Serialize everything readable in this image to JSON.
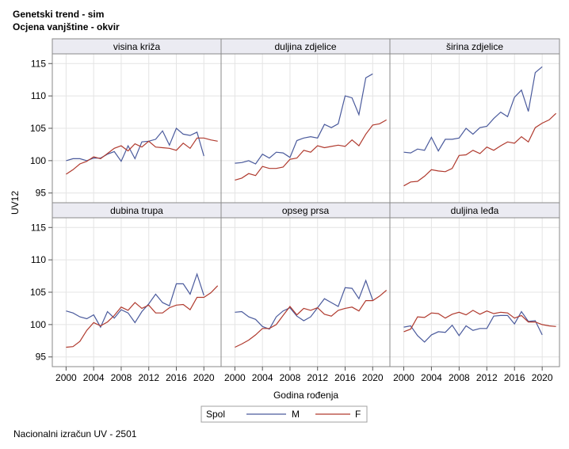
{
  "header": {
    "title": "Genetski trend - sim",
    "subtitle": "Ocjena vanjštine - okvir"
  },
  "footnote": "Nacionalni izračun UV - 2501",
  "chart_data": {
    "type": "line",
    "ylabel": "UV12",
    "xlabel": "Godina rođenja",
    "xlim": [
      1998,
      2022.5
    ],
    "ylim": [
      93.5,
      116.5
    ],
    "x_ticks": [
      2000,
      2004,
      2008,
      2012,
      2016,
      2020
    ],
    "y_ticks": [
      95,
      100,
      105,
      110,
      115
    ],
    "grid": true,
    "legend": {
      "position": "bottom",
      "title": "Spol",
      "entries": [
        {
          "key": "M",
          "label": "M",
          "color": "#4a5a9c"
        },
        {
          "key": "F",
          "label": "F",
          "color": "#b03a2e"
        }
      ]
    },
    "panels": [
      {
        "title": "visina križa",
        "series": [
          {
            "key": "M",
            "x": [
              2000,
              2001,
              2002,
              2003,
              2004,
              2005,
              2006,
              2007,
              2008,
              2009,
              2010,
              2011,
              2012,
              2013,
              2014,
              2015,
              2016,
              2017,
              2018,
              2019,
              2020
            ],
            "y": [
              100.0,
              100.3,
              100.3,
              100.0,
              100.4,
              100.4,
              101.0,
              101.4,
              99.9,
              102.3,
              100.3,
              102.9,
              103.0,
              103.3,
              104.6,
              102.4,
              105.0,
              104.1,
              103.9,
              104.4,
              100.7
            ]
          },
          {
            "key": "F",
            "x": [
              2000,
              2001,
              2002,
              2003,
              2004,
              2005,
              2006,
              2007,
              2008,
              2009,
              2010,
              2011,
              2012,
              2013,
              2014,
              2015,
              2016,
              2017,
              2018,
              2019,
              2020,
              2021,
              2022
            ],
            "y": [
              97.9,
              98.6,
              99.5,
              99.9,
              100.6,
              100.3,
              101.1,
              101.9,
              102.3,
              101.5,
              102.6,
              102.1,
              103.0,
              102.1,
              102.0,
              101.9,
              101.6,
              102.7,
              101.9,
              103.5,
              103.5,
              103.2,
              103.0
            ]
          }
        ]
      },
      {
        "title": "duljina zdjelice",
        "series": [
          {
            "key": "M",
            "x": [
              2000,
              2001,
              2002,
              2003,
              2004,
              2005,
              2006,
              2007,
              2008,
              2009,
              2010,
              2011,
              2012,
              2013,
              2014,
              2015,
              2016,
              2017,
              2018,
              2019,
              2020
            ],
            "y": [
              99.6,
              99.7,
              100.0,
              99.5,
              101.0,
              100.4,
              101.3,
              101.2,
              100.5,
              103.1,
              103.5,
              103.7,
              103.5,
              105.6,
              105.1,
              105.7,
              110.0,
              109.7,
              107.1,
              112.8,
              113.4
            ]
          },
          {
            "key": "F",
            "x": [
              2000,
              2001,
              2002,
              2003,
              2004,
              2005,
              2006,
              2007,
              2008,
              2009,
              2010,
              2011,
              2012,
              2013,
              2014,
              2015,
              2016,
              2017,
              2018,
              2019,
              2020,
              2021,
              2022
            ],
            "y": [
              97.0,
              97.3,
              98.0,
              97.7,
              99.1,
              98.8,
              98.8,
              99.0,
              100.2,
              100.4,
              101.6,
              101.3,
              102.3,
              102.0,
              102.2,
              102.4,
              102.2,
              103.2,
              102.3,
              104.1,
              105.5,
              105.7,
              106.3
            ]
          }
        ]
      },
      {
        "title": "širina zdjelice",
        "series": [
          {
            "key": "M",
            "x": [
              2000,
              2001,
              2002,
              2003,
              2004,
              2005,
              2006,
              2007,
              2008,
              2009,
              2010,
              2011,
              2012,
              2013,
              2014,
              2015,
              2016,
              2017,
              2018,
              2019,
              2020
            ],
            "y": [
              101.3,
              101.2,
              101.8,
              101.6,
              103.6,
              101.5,
              103.3,
              103.3,
              103.5,
              105.0,
              104.1,
              105.1,
              105.3,
              106.5,
              107.5,
              106.8,
              109.8,
              110.9,
              107.6,
              113.6,
              114.5
            ]
          },
          {
            "key": "F",
            "x": [
              2000,
              2001,
              2002,
              2003,
              2004,
              2005,
              2006,
              2007,
              2008,
              2009,
              2010,
              2011,
              2012,
              2013,
              2014,
              2015,
              2016,
              2017,
              2018,
              2019,
              2020,
              2021,
              2022
            ],
            "y": [
              96.1,
              96.7,
              96.8,
              97.6,
              98.6,
              98.4,
              98.3,
              98.8,
              100.8,
              100.9,
              101.6,
              101.1,
              102.1,
              101.6,
              102.3,
              102.9,
              102.7,
              103.7,
              102.9,
              105.1,
              105.8,
              106.3,
              107.3
            ]
          }
        ]
      },
      {
        "title": "dubina trupa",
        "series": [
          {
            "key": "M",
            "x": [
              2000,
              2001,
              2002,
              2003,
              2004,
              2005,
              2006,
              2007,
              2008,
              2009,
              2010,
              2011,
              2012,
              2013,
              2014,
              2015,
              2016,
              2017,
              2018,
              2019,
              2020
            ],
            "y": [
              102.1,
              101.8,
              101.2,
              100.9,
              101.5,
              99.6,
              102.0,
              101.0,
              102.3,
              101.8,
              100.3,
              102.0,
              103.2,
              104.7,
              103.4,
              102.9,
              106.3,
              106.3,
              104.7,
              107.8,
              104.5
            ]
          },
          {
            "key": "F",
            "x": [
              2000,
              2001,
              2002,
              2003,
              2004,
              2005,
              2006,
              2007,
              2008,
              2009,
              2010,
              2011,
              2012,
              2013,
              2014,
              2015,
              2016,
              2017,
              2018,
              2019,
              2020,
              2021,
              2022
            ],
            "y": [
              96.5,
              96.6,
              97.4,
              99.1,
              100.3,
              99.8,
              100.4,
              101.4,
              102.7,
              102.2,
              103.4,
              102.5,
              103.0,
              101.8,
              101.8,
              102.6,
              103.0,
              103.1,
              102.3,
              104.2,
              104.2,
              104.9,
              106.0
            ]
          }
        ]
      },
      {
        "title": "opseg prsa",
        "series": [
          {
            "key": "M",
            "x": [
              2000,
              2001,
              2002,
              2003,
              2004,
              2005,
              2006,
              2007,
              2008,
              2009,
              2010,
              2011,
              2012,
              2013,
              2014,
              2015,
              2016,
              2017,
              2018,
              2019,
              2020
            ],
            "y": [
              101.9,
              102.0,
              101.2,
              100.8,
              99.7,
              99.3,
              101.2,
              102.1,
              102.6,
              101.3,
              100.6,
              101.2,
              102.6,
              104.0,
              103.4,
              102.8,
              105.7,
              105.6,
              104.0,
              106.8,
              103.8
            ]
          },
          {
            "key": "F",
            "x": [
              2000,
              2001,
              2002,
              2003,
              2004,
              2005,
              2006,
              2007,
              2008,
              2009,
              2010,
              2011,
              2012,
              2013,
              2014,
              2015,
              2016,
              2017,
              2018,
              2019,
              2020,
              2021,
              2022
            ],
            "y": [
              96.5,
              97.0,
              97.6,
              98.4,
              99.4,
              99.4,
              100.0,
              101.4,
              102.8,
              101.5,
              102.5,
              102.2,
              102.6,
              101.6,
              101.3,
              102.2,
              102.5,
              102.7,
              102.1,
              103.7,
              103.7,
              104.4,
              105.3
            ]
          }
        ]
      },
      {
        "title": "duljina leđa",
        "series": [
          {
            "key": "M",
            "x": [
              2000,
              2001,
              2002,
              2003,
              2004,
              2005,
              2006,
              2007,
              2008,
              2009,
              2010,
              2011,
              2012,
              2013,
              2014,
              2015,
              2016,
              2017,
              2018,
              2019,
              2020
            ],
            "y": [
              99.6,
              99.8,
              98.3,
              97.3,
              98.4,
              98.9,
              98.8,
              99.9,
              98.3,
              99.8,
              99.1,
              99.4,
              99.4,
              101.3,
              101.4,
              101.4,
              100.1,
              102.0,
              100.5,
              100.6,
              98.4
            ]
          },
          {
            "key": "F",
            "x": [
              2000,
              2001,
              2002,
              2003,
              2004,
              2005,
              2006,
              2007,
              2008,
              2009,
              2010,
              2011,
              2012,
              2013,
              2014,
              2015,
              2016,
              2017,
              2018,
              2019,
              2020,
              2021,
              2022
            ],
            "y": [
              98.9,
              99.3,
              101.2,
              101.1,
              101.8,
              101.7,
              101.0,
              101.6,
              101.9,
              101.5,
              102.2,
              101.6,
              102.1,
              101.7,
              101.9,
              101.8,
              101.0,
              101.4,
              100.4,
              100.4,
              100.0,
              99.8,
              99.7
            ]
          }
        ]
      }
    ]
  }
}
